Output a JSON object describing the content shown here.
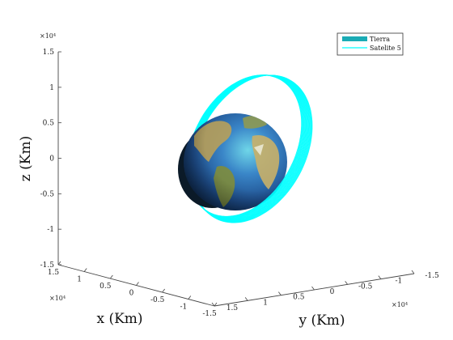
{
  "chart_data": {
    "type": "3d-orbit",
    "title": "",
    "xlabel": "x (Km)",
    "ylabel": "y (Km)",
    "zlabel": "z (Km)",
    "xlim": [
      -15000,
      15000
    ],
    "ylim": [
      -15000,
      15000
    ],
    "zlim": [
      -15000,
      15000
    ],
    "x_ticks": [
      "1.5",
      "1",
      "0.5",
      "0",
      "-0.5",
      "-1",
      "-1.5"
    ],
    "y_ticks": [
      "1.5",
      "1",
      "0.5",
      "0",
      "-0.5",
      "-1",
      "-1.5"
    ],
    "z_ticks": [
      "1.5",
      "1",
      "0.5",
      "0",
      "-0.5",
      "-1",
      "-1.5"
    ],
    "x_exponent": "×10⁴",
    "y_exponent": "×10⁴",
    "z_exponent": "×10⁴",
    "grid": false,
    "legend_position": "top-right",
    "legend": [
      {
        "label": "Tierra",
        "color": "#1aabb5",
        "style": "patch"
      },
      {
        "label": "Satelite 5",
        "color": "#00ffff",
        "style": "line"
      }
    ],
    "series": [
      {
        "name": "Tierra",
        "kind": "sphere",
        "radius_km": 6378
      },
      {
        "name": "Satelite 5",
        "kind": "orbit",
        "color": "#00ffff",
        "semi_major_km": 9500,
        "loops": 18
      }
    ]
  }
}
